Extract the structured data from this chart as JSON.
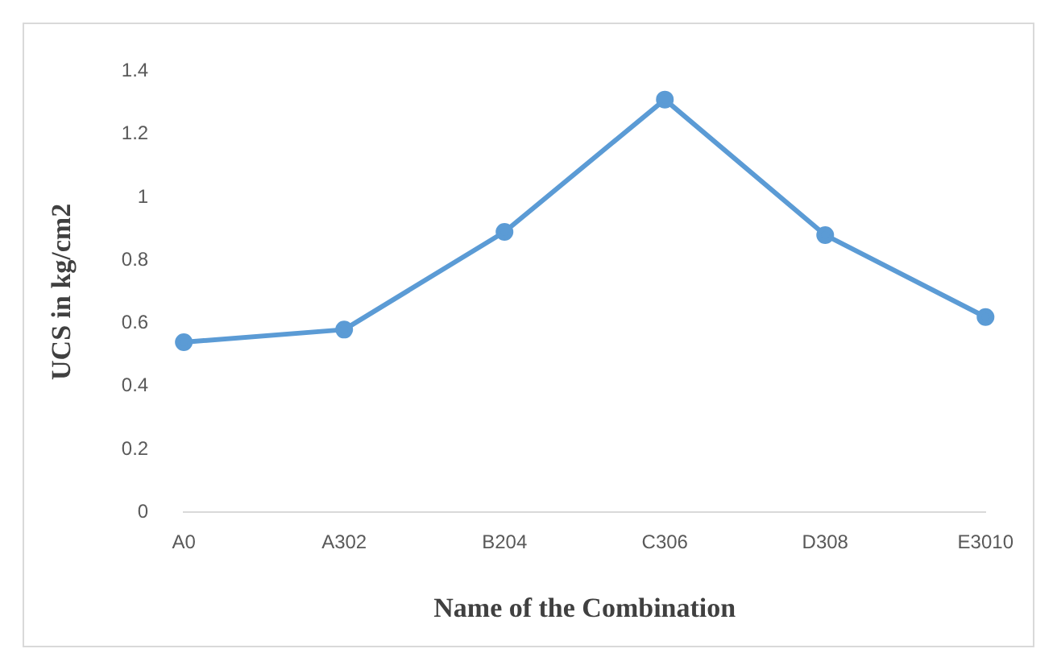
{
  "chart_data": {
    "type": "line",
    "xlabel": "Name of the Combination",
    "ylabel": "UCS in kg/cm2",
    "categories": [
      "A0",
      "A302",
      "B204",
      "C306",
      "D308",
      "E3010"
    ],
    "series": [
      {
        "color": "#5b9bd5",
        "values": [
          0.54,
          0.58,
          0.89,
          1.31,
          0.88,
          0.62
        ]
      }
    ],
    "ylim": [
      0,
      1.4
    ],
    "yticks": [
      0,
      0.2,
      0.4,
      0.6,
      0.8,
      1,
      1.2,
      1.4
    ],
    "grid": false,
    "legend": false,
    "marker": "circle",
    "line_style": "solid"
  }
}
